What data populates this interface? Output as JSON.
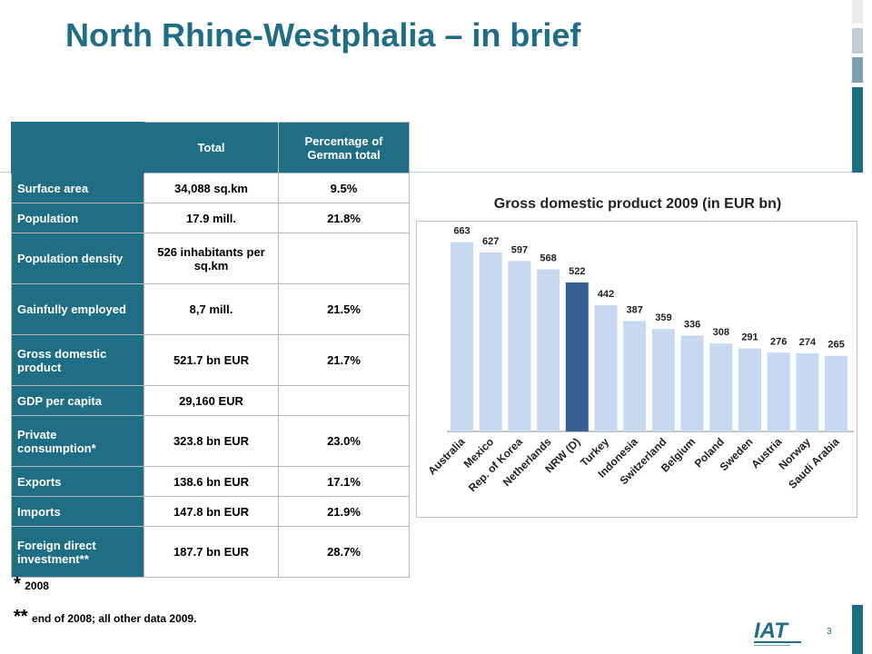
{
  "title": "North Rhine-Westphalia – in brief",
  "table": {
    "headers": [
      "",
      "Total",
      "Percentage of German total"
    ],
    "rows": [
      {
        "label": "Surface area",
        "total": "34,088 sq.km",
        "pct": "9.5%"
      },
      {
        "label": "Population",
        "total": "17.9 mill.",
        "pct": "21.8%"
      },
      {
        "label": "Population density",
        "total": "526 inhabitants per sq.km",
        "pct": ""
      },
      {
        "label": "Gainfully employed",
        "total": "8,7 mill.",
        "pct": "21.5%"
      },
      {
        "label": "Gross domestic product",
        "total": "521.7 bn EUR",
        "pct": "21.7%"
      },
      {
        "label": "GDP per capita",
        "total": "29,160 EUR",
        "pct": ""
      },
      {
        "label": "Private consumption*",
        "total": "323.8 bn EUR",
        "pct": "23.0%"
      },
      {
        "label": "Exports",
        "total": "138.6 bn EUR",
        "pct": "17.1%"
      },
      {
        "label": "Imports",
        "total": "147.8 bn EUR",
        "pct": "21.9%"
      },
      {
        "label": "Foreign direct investment**",
        "total": "187.7 bn EUR",
        "pct": "28.7%"
      }
    ]
  },
  "notes": [
    {
      "mark": "*",
      "text": "2008"
    },
    {
      "mark": "**",
      "text": "end of 2008; all other data 2009."
    }
  ],
  "page_number": "3",
  "logo_text": "IAT",
  "colors": {
    "brand": "#1f6e85",
    "bar": "#c6d9f1",
    "bar_highlight": "#365f91"
  },
  "chart_data": {
    "type": "bar",
    "title": "Gross  domestic product 2009 (in EUR bn)",
    "categories": [
      "Australia",
      "Mexico",
      "Rep. of Korea",
      "Netherlands",
      "NRW (D)",
      "Turkey",
      "Indonesia",
      "Switzerland",
      "Belgium",
      "Poland",
      "Sweden",
      "Austria",
      "Norway",
      "Saudi Arabia"
    ],
    "values": [
      663,
      627,
      597,
      568,
      522,
      442,
      387,
      359,
      336,
      308,
      291,
      276,
      274,
      265
    ],
    "highlight": "NRW (D)",
    "xlabel": "",
    "ylabel": "",
    "ylim": [
      0,
      700
    ],
    "grid": false,
    "legend": "none"
  }
}
